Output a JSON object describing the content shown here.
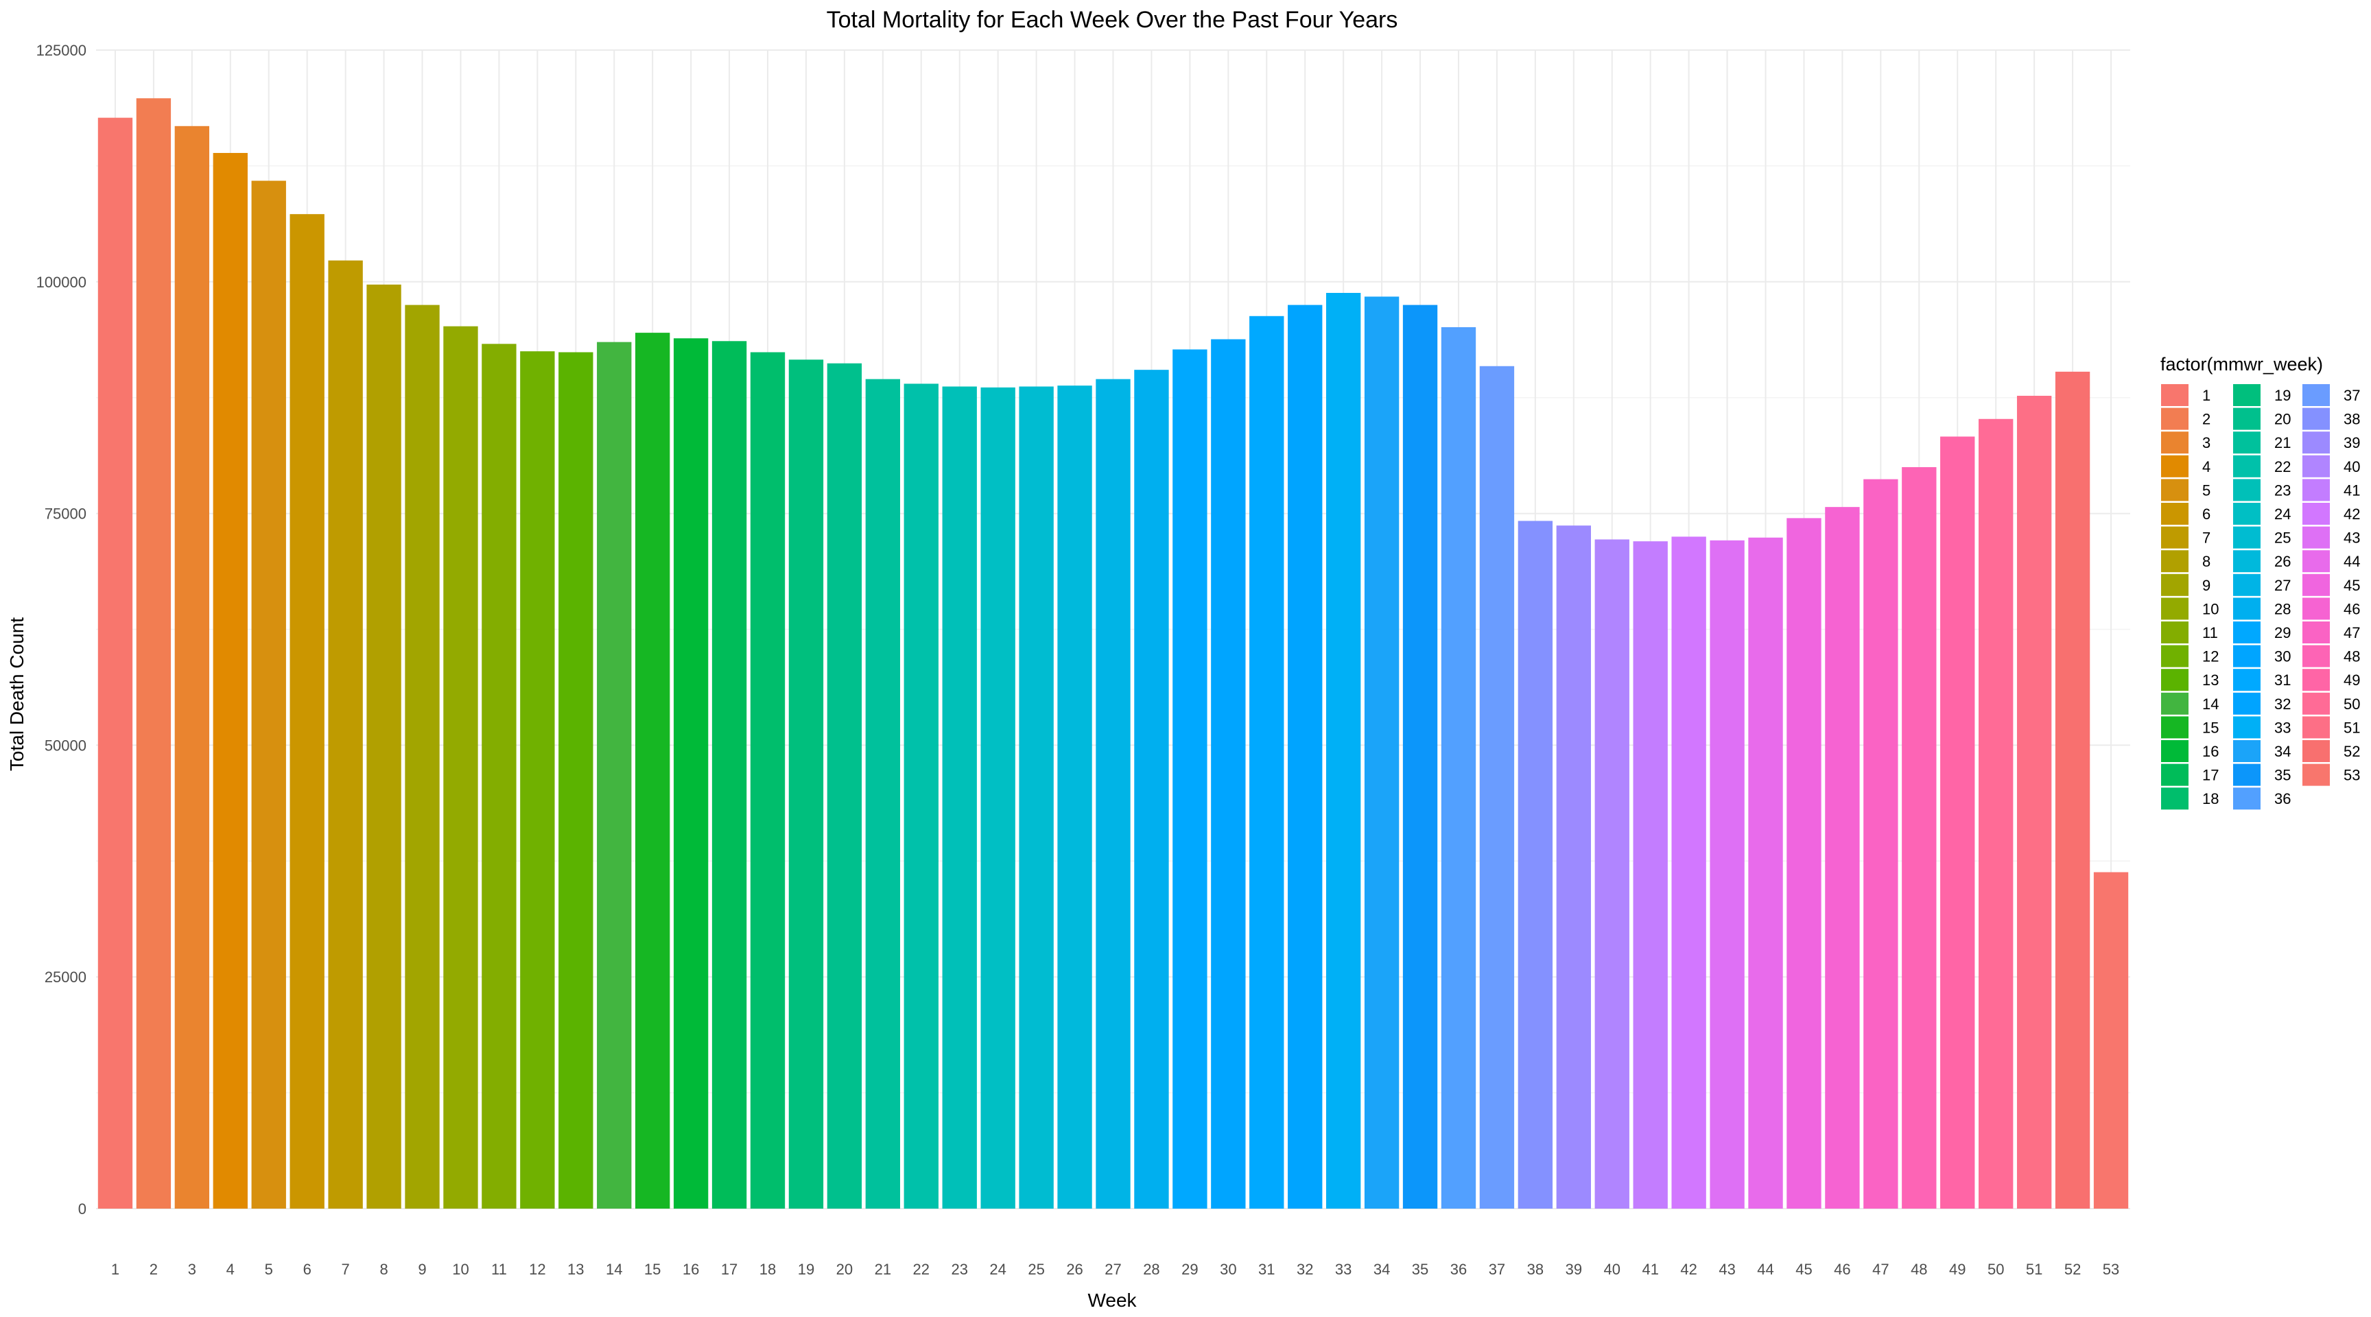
{
  "chart_data": {
    "type": "bar",
    "title": "Total Mortality for Each Week Over the Past Four Years",
    "xlabel": "Week",
    "ylabel": "Total Death Count",
    "ylim": [
      0,
      125000
    ],
    "yticks": [
      0,
      25000,
      50000,
      75000,
      100000,
      125000
    ],
    "grid": true,
    "legend": {
      "title": "factor(mmwr_week)",
      "placement": "right",
      "columns": 3
    },
    "categories": [
      "1",
      "2",
      "3",
      "4",
      "5",
      "6",
      "7",
      "8",
      "9",
      "10",
      "11",
      "12",
      "13",
      "14",
      "15",
      "16",
      "17",
      "18",
      "19",
      "20",
      "21",
      "22",
      "23",
      "24",
      "25",
      "26",
      "27",
      "28",
      "29",
      "30",
      "31",
      "32",
      "33",
      "34",
      "35",
      "36",
      "37",
      "38",
      "39",
      "40",
      "41",
      "42",
      "43",
      "44",
      "45",
      "46",
      "47",
      "48",
      "49",
      "50",
      "51",
      "52",
      "53"
    ],
    "values": [
      117700,
      119800,
      116800,
      113900,
      110900,
      107300,
      102300,
      99700,
      97500,
      95200,
      93300,
      92500,
      92400,
      93500,
      94500,
      93900,
      93600,
      92400,
      91600,
      91200,
      89500,
      89000,
      88700,
      88600,
      88700,
      88800,
      89500,
      90500,
      92700,
      93800,
      96300,
      97500,
      98800,
      98400,
      97500,
      95100,
      90900,
      74200,
      73700,
      72200,
      72000,
      72500,
      72100,
      72400,
      74500,
      75700,
      78700,
      80000,
      83300,
      85200,
      87700,
      90300,
      36300
    ],
    "colors": [
      "#F8766D",
      "#F27D52",
      "#EA842F",
      "#E18A00",
      "#D7900F",
      "#CB9600",
      "#BF9B00",
      "#B1A000",
      "#A2A500",
      "#93AA00",
      "#83AD00",
      "#70B100",
      "#5BB300",
      "#42B540",
      "#16B723",
      "#00BA38",
      "#00BC59",
      "#00BE6C",
      "#00BF7D",
      "#00C08D",
      "#00C19C",
      "#00C1AA",
      "#00C0B8",
      "#00BFC4",
      "#00BCD1",
      "#00B9DC",
      "#00B4E6",
      "#00AFEF",
      "#00A8FF",
      "#00A5FF",
      "#00A9FF",
      "#00A4FF",
      "#00B0F6",
      "#1BA4F9",
      "#0C96FA",
      "#52A0FF",
      "#6A9CFF",
      "#8491FF",
      "#9C8AFF",
      "#B085FF",
      "#C37DFF",
      "#D277FF",
      "#DE70F5",
      "#E86BEB",
      "#F065DF",
      "#F663D2",
      "#FA63C4",
      "#FD64B5",
      "#FF65A6",
      "#FF6B96",
      "#FD6F86",
      "#F8706F",
      "#F8766D"
    ]
  }
}
